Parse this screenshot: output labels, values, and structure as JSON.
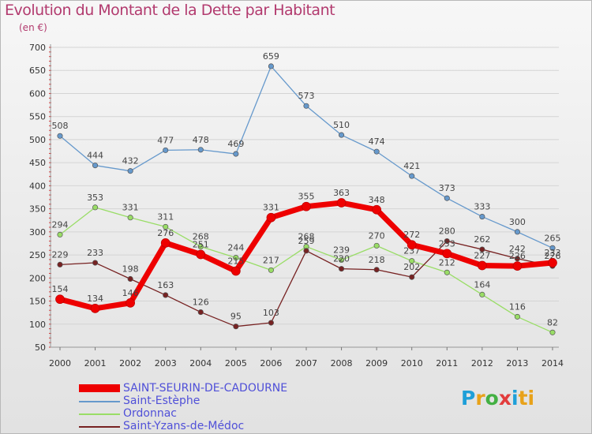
{
  "chart_data": {
    "type": "line",
    "title": "Evolution du Montant de la Dette par Habitant",
    "ylabel": "(en €)",
    "xlabel": "",
    "ylim": [
      50,
      700
    ],
    "yticks": [
      50,
      100,
      150,
      200,
      250,
      300,
      350,
      400,
      450,
      500,
      550,
      600,
      650,
      700
    ],
    "categories": [
      "2000",
      "2001",
      "2002",
      "2003",
      "2004",
      "2005",
      "2006",
      "2007",
      "2008",
      "2009",
      "2010",
      "2011",
      "2012",
      "2013",
      "2014"
    ],
    "series": [
      {
        "name": "SAINT-SEURIN-DE-CADOURNE",
        "color": "#ee0000",
        "values": [
          154,
          134,
          146,
          276,
          251,
          215,
          331,
          355,
          363,
          348,
          272,
          253,
          227,
          226,
          233
        ]
      },
      {
        "name": "Saint-Estèphe",
        "color": "#6699cc",
        "values": [
          508,
          444,
          432,
          477,
          478,
          469,
          659,
          573,
          510,
          474,
          421,
          373,
          333,
          300,
          265
        ]
      },
      {
        "name": "Ordonnac",
        "color": "#99dd66",
        "values": [
          294,
          353,
          331,
          311,
          268,
          244,
          217,
          268,
          239,
          270,
          237,
          212,
          164,
          116,
          82
        ]
      },
      {
        "name": "Saint-Yzans-de-Médoc",
        "color": "#772222",
        "values": [
          229,
          233,
          198,
          163,
          126,
          95,
          103,
          259,
          220,
          218,
          202,
          280,
          262,
          242,
          226
        ]
      }
    ]
  },
  "brand": {
    "logo": "Proxiti"
  }
}
